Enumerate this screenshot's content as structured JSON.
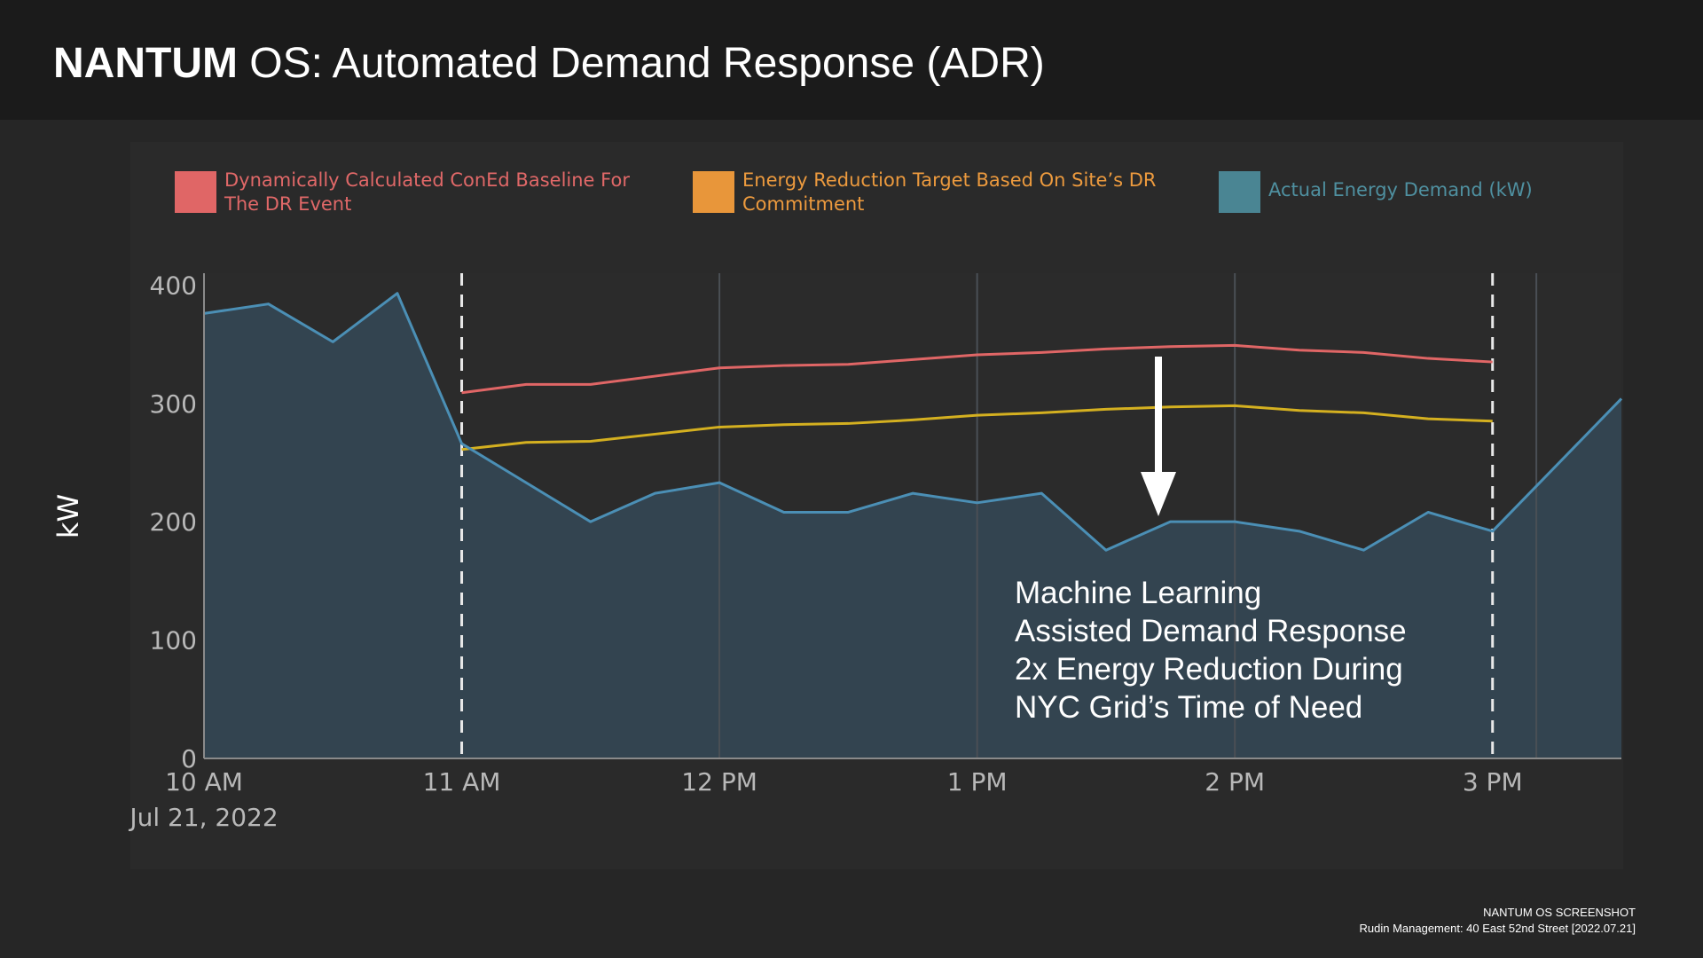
{
  "header": {
    "brand": "NANTUM",
    "title_rest": " OS: Automated Demand Response (ADR)"
  },
  "legend": [
    {
      "label_line1": "Dynamically Calculated ConEd Baseline For",
      "label_line2": "The DR Event",
      "color": "#e06666",
      "text_color": "#e06868"
    },
    {
      "label_line1": "Energy Reduction Target Based On Site’s DR",
      "label_line2": "Commitment",
      "color": "#e8963a",
      "text_color": "#ec9a3e"
    },
    {
      "label_line1": "Actual Energy Demand (kW)",
      "label_line2": "",
      "color": "#4a8593",
      "text_color": "#4f90a0"
    }
  ],
  "chart_data": {
    "type": "area",
    "ylabel": "kW",
    "ylim": [
      0,
      410
    ],
    "yticks": [
      "0",
      "100",
      "200",
      "300",
      "400"
    ],
    "xlim_hours": [
      10,
      15.5
    ],
    "xticks": [
      {
        "hour": 10,
        "label": "10 AM",
        "sublabel": "Jul 21, 2022"
      },
      {
        "hour": 11,
        "label": "11 AM",
        "sublabel": ""
      },
      {
        "hour": 12,
        "label": "12 PM",
        "sublabel": ""
      },
      {
        "hour": 13,
        "label": "1 PM",
        "sublabel": ""
      },
      {
        "hour": 14,
        "label": "2 PM",
        "sublabel": ""
      },
      {
        "hour": 15,
        "label": "3 PM",
        "sublabel": ""
      }
    ],
    "event_start_hour": 11,
    "event_end_hour": 15,
    "extra_vline_hour": 15.17,
    "series": [
      {
        "color": "#e06666",
        "x": [
          11,
          11.25,
          11.5,
          11.75,
          12,
          12.25,
          12.5,
          12.75,
          13,
          13.25,
          13.5,
          13.75,
          14,
          14.25,
          14.5,
          14.75,
          15
        ],
        "y": [
          309,
          316,
          316,
          323,
          330,
          332,
          333,
          337,
          341,
          343,
          346,
          348,
          349,
          345,
          343,
          338,
          335
        ]
      },
      {
        "color": "#d4b020",
        "x": [
          11,
          11.25,
          11.5,
          11.75,
          12,
          12.25,
          12.5,
          12.75,
          13,
          13.25,
          13.5,
          13.75,
          14,
          14.25,
          14.5,
          14.75,
          15
        ],
        "y": [
          261,
          267,
          268,
          274,
          280,
          282,
          283,
          286,
          290,
          292,
          295,
          297,
          298,
          294,
          292,
          287,
          285
        ]
      },
      {
        "color": "#4b8fb5",
        "x": [
          10,
          10.25,
          10.5,
          10.75,
          11,
          11.25,
          11.5,
          11.75,
          12,
          12.25,
          12.5,
          12.75,
          13,
          13.25,
          13.5,
          13.75,
          14,
          14.25,
          14.5,
          14.75,
          15,
          15.5
        ],
        "y": [
          376,
          384,
          352,
          393,
          266,
          233,
          200,
          224,
          233,
          208,
          208,
          224,
          216,
          224,
          176,
          200,
          200,
          192,
          176,
          208,
          192,
          304
        ]
      }
    ]
  },
  "annotation": {
    "lines": [
      "Machine Learning",
      "Assisted Demand Response",
      "2x Energy Reduction During",
      "NYC Grid’s Time of Need"
    ]
  },
  "footer": {
    "line1": "NANTUM OS SCREENSHOT",
    "line2": "Rudin Management: 40 East 52nd Street [2022.07.21]"
  }
}
